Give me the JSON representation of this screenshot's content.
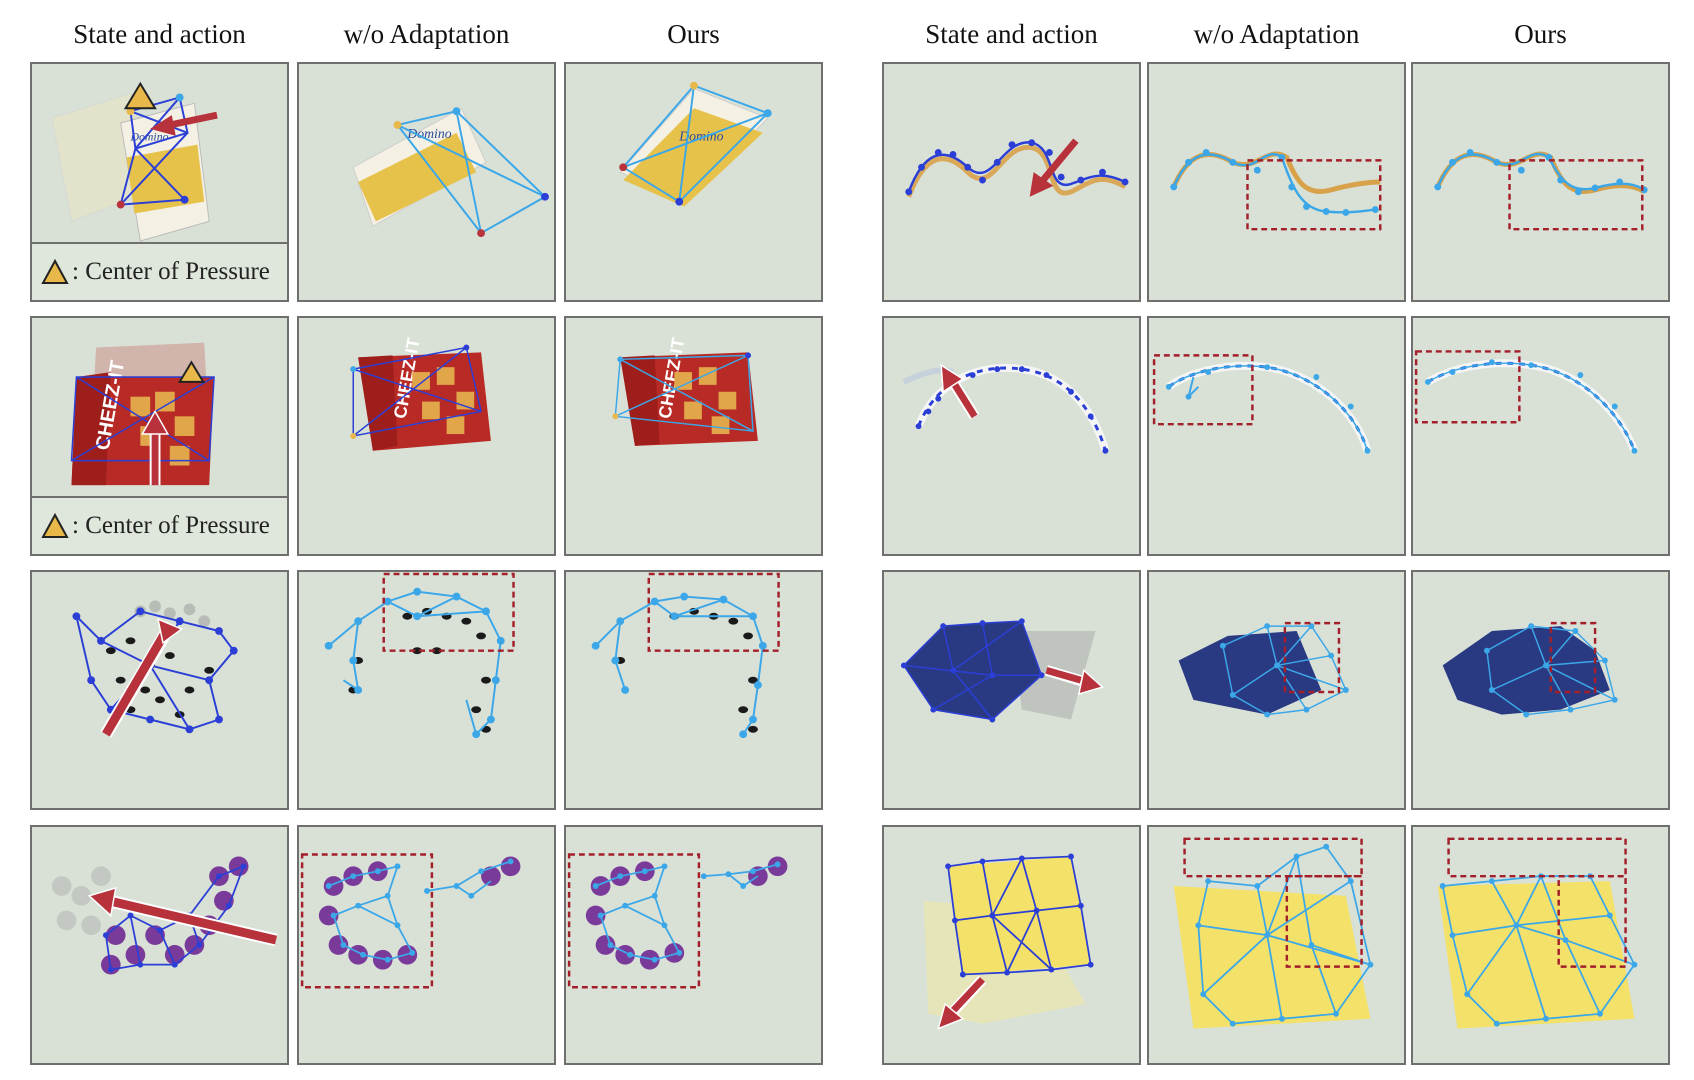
{
  "column_headers": {
    "left": [
      "State and action",
      "w/o Adaptation",
      "Ours"
    ],
    "right": [
      "State and action",
      "w/o Adaptation",
      "Ours"
    ]
  },
  "legend": {
    "text": ": Center of Pressure",
    "icon": "triangle-icon",
    "icon_color": "#e8b84a"
  },
  "colors": {
    "graph_dark_blue": "#2b3fd6",
    "graph_light_blue": "#3ba7e8",
    "action_arrow": "#b8323c",
    "highlight_box": "#a3202b",
    "background": "#d9e1d7"
  },
  "rows": [
    {
      "left_object": "sugar box",
      "right_object": "rope"
    },
    {
      "left_object": "cracker box",
      "right_object": "striped rope"
    },
    {
      "left_object": "coffee beans",
      "right_object": "cloth"
    },
    {
      "left_object": "candies",
      "right_object": "paper sheet"
    }
  ]
}
